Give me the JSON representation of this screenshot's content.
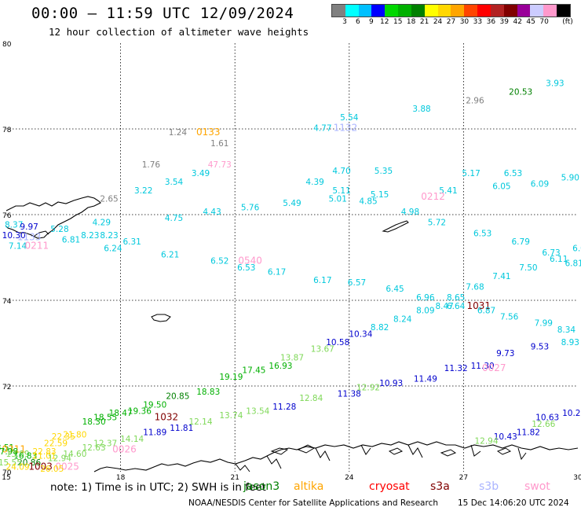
{
  "title": "00:00 – 11:59 UTC 12/09/2024",
  "subtitle": "12 hour collection of altimeter wave heights",
  "legend": {
    "unit": "(ft)",
    "colors": [
      "#808080",
      "#00ffff",
      "#00c0ff",
      "#0000ff",
      "#00d800",
      "#00b000",
      "#008000",
      "#ffff00",
      "#ffd700",
      "#ffa500",
      "#ff4500",
      "#ff0000",
      "#b22222",
      "#800000",
      "#990099",
      "#ccccff",
      "#ff99cc",
      "#000000"
    ],
    "labels": [
      "3",
      "6",
      "9",
      "12",
      "15",
      "18",
      "21",
      "24",
      "27",
      "30",
      "33",
      "36",
      "39",
      "42",
      "45",
      "70"
    ]
  },
  "axes": {
    "lat_labels": [
      "80",
      "78",
      "76",
      "74",
      "72",
      "70"
    ],
    "lon_labels": [
      "15",
      "18",
      "21",
      "24",
      "27",
      "30"
    ]
  },
  "observations": [
    {
      "t": "3.93",
      "c": "#00c8dc",
      "lon": 29.4,
      "lat": 79.0
    },
    {
      "t": "20.53",
      "c": "#008000",
      "lon": 28.5,
      "lat": 78.8
    },
    {
      "t": "2.96",
      "c": "#808080",
      "lon": 27.3,
      "lat": 78.6
    },
    {
      "t": "3.88",
      "c": "#00c8dc",
      "lon": 25.9,
      "lat": 78.4
    },
    {
      "t": "5.54",
      "c": "#00c8dc",
      "lon": 24.0,
      "lat": 78.2
    },
    {
      "t": "1132",
      "c": "#aab4ff",
      "lon": 23.9,
      "lat": 77.95
    },
    {
      "t": "4.77",
      "c": "#00c8dc",
      "lon": 23.3,
      "lat": 77.95
    },
    {
      "t": "1.24",
      "c": "#808080",
      "lon": 19.5,
      "lat": 77.85
    },
    {
      "t": "0133",
      "c": "#ffa500",
      "lon": 20.3,
      "lat": 77.85
    },
    {
      "t": "1.61",
      "c": "#808080",
      "lon": 20.6,
      "lat": 77.6
    },
    {
      "t": "1.76",
      "c": "#808080",
      "lon": 18.8,
      "lat": 77.1
    },
    {
      "t": "47.73",
      "c": "#ff99cc",
      "lon": 20.6,
      "lat": 77.1
    },
    {
      "t": "4.70",
      "c": "#00c8dc",
      "lon": 23.8,
      "lat": 76.95
    },
    {
      "t": "5.35",
      "c": "#00c8dc",
      "lon": 24.9,
      "lat": 76.95
    },
    {
      "t": "5.17",
      "c": "#00c8dc",
      "lon": 27.2,
      "lat": 76.9
    },
    {
      "t": "6.53",
      "c": "#00c8dc",
      "lon": 28.3,
      "lat": 76.9
    },
    {
      "t": "3.49",
      "c": "#00c8dc",
      "lon": 20.1,
      "lat": 76.9
    },
    {
      "t": "3.54",
      "c": "#00c8dc",
      "lon": 19.4,
      "lat": 76.7
    },
    {
      "t": "5.90",
      "c": "#00c8dc",
      "lon": 29.8,
      "lat": 76.8
    },
    {
      "t": "4.39",
      "c": "#00c8dc",
      "lon": 23.1,
      "lat": 76.7
    },
    {
      "t": "6.05",
      "c": "#00c8dc",
      "lon": 28.0,
      "lat": 76.6
    },
    {
      "t": "6.09",
      "c": "#00c8dc",
      "lon": 29.0,
      "lat": 76.65
    },
    {
      "t": "3.22",
      "c": "#00c8dc",
      "lon": 18.6,
      "lat": 76.5
    },
    {
      "t": "5.11",
      "c": "#00c8dc",
      "lon": 23.8,
      "lat": 76.5
    },
    {
      "t": "5.41",
      "c": "#00c8dc",
      "lon": 26.6,
      "lat": 76.5
    },
    {
      "t": "5.15",
      "c": "#00c8dc",
      "lon": 24.8,
      "lat": 76.4
    },
    {
      "t": "0212",
      "c": "#ff99cc",
      "lon": 26.2,
      "lat": 76.35
    },
    {
      "t": "5.01",
      "c": "#00c8dc",
      "lon": 23.7,
      "lat": 76.3
    },
    {
      "t": "4.85",
      "c": "#00c8dc",
      "lon": 24.5,
      "lat": 76.25
    },
    {
      "t": "2.65",
      "c": "#808080",
      "lon": 17.7,
      "lat": 76.3
    },
    {
      "t": "5.49",
      "c": "#00c8dc",
      "lon": 22.5,
      "lat": 76.2
    },
    {
      "t": "5.76",
      "c": "#00c8dc",
      "lon": 21.4,
      "lat": 76.1
    },
    {
      "t": "4.43",
      "c": "#00c8dc",
      "lon": 20.4,
      "lat": 76.0
    },
    {
      "t": "4.98",
      "c": "#00c8dc",
      "lon": 25.6,
      "lat": 76.0
    },
    {
      "t": "4.75",
      "c": "#00c8dc",
      "lon": 19.4,
      "lat": 75.85
    },
    {
      "t": "5.72",
      "c": "#00c8dc",
      "lon": 26.3,
      "lat": 75.75
    },
    {
      "t": "4.29",
      "c": "#00c8dc",
      "lon": 17.5,
      "lat": 75.75
    },
    {
      "t": "5.28",
      "c": "#00c8dc",
      "lon": 16.4,
      "lat": 75.6
    },
    {
      "t": "8.37",
      "c": "#00c8dc",
      "lon": 15.2,
      "lat": 75.7
    },
    {
      "t": "9.97",
      "c": "#0000cd",
      "lon": 15.6,
      "lat": 75.65
    },
    {
      "t": "10.30",
      "c": "#0000cd",
      "lon": 15.2,
      "lat": 75.45
    },
    {
      "t": "1133",
      "c": "#aab4ff",
      "lon": 15.6,
      "lat": 75.4
    },
    {
      "t": "8.23",
      "c": "#00c8dc",
      "lon": 17.2,
      "lat": 75.45
    },
    {
      "t": "6.81",
      "c": "#00c8dc",
      "lon": 16.7,
      "lat": 75.35
    },
    {
      "t": "8.23",
      "c": "#00c8dc",
      "lon": 17.7,
      "lat": 75.45
    },
    {
      "t": "6.53",
      "c": "#00c8dc",
      "lon": 27.5,
      "lat": 75.5
    },
    {
      "t": "6.31",
      "c": "#00c8dc",
      "lon": 18.3,
      "lat": 75.3
    },
    {
      "t": "6.79",
      "c": "#00c8dc",
      "lon": 28.5,
      "lat": 75.3
    },
    {
      "t": "7.14",
      "c": "#00c8dc",
      "lon": 15.3,
      "lat": 75.2
    },
    {
      "t": "0211",
      "c": "#ff99cc",
      "lon": 15.8,
      "lat": 75.2
    },
    {
      "t": "6.24",
      "c": "#00c8dc",
      "lon": 17.8,
      "lat": 75.15
    },
    {
      "t": "6.08",
      "c": "#00c8dc",
      "lon": 30.1,
      "lat": 75.15
    },
    {
      "t": "6.21",
      "c": "#00c8dc",
      "lon": 19.3,
      "lat": 75.0
    },
    {
      "t": "6.73",
      "c": "#00c8dc",
      "lon": 29.3,
      "lat": 75.05
    },
    {
      "t": "6.52",
      "c": "#00c8dc",
      "lon": 20.6,
      "lat": 74.85
    },
    {
      "t": "0540",
      "c": "#ff99cc",
      "lon": 21.4,
      "lat": 74.85
    },
    {
      "t": "6.11",
      "c": "#00c8dc",
      "lon": 29.5,
      "lat": 74.9
    },
    {
      "t": "6.81",
      "c": "#00c8dc",
      "lon": 29.9,
      "lat": 74.8
    },
    {
      "t": "6.53",
      "c": "#00c8dc",
      "lon": 21.3,
      "lat": 74.7
    },
    {
      "t": "7.50",
      "c": "#00c8dc",
      "lon": 28.7,
      "lat": 74.7
    },
    {
      "t": "6.17",
      "c": "#00c8dc",
      "lon": 22.1,
      "lat": 74.6
    },
    {
      "t": "6.17",
      "c": "#00c8dc",
      "lon": 23.3,
      "lat": 74.4
    },
    {
      "t": "7.41",
      "c": "#00c8dc",
      "lon": 28.0,
      "lat": 74.5
    },
    {
      "t": "6.57",
      "c": "#00c8dc",
      "lon": 24.2,
      "lat": 74.35
    },
    {
      "t": "7.68",
      "c": "#00c8dc",
      "lon": 27.3,
      "lat": 74.25
    },
    {
      "t": "6.45",
      "c": "#00c8dc",
      "lon": 25.2,
      "lat": 74.2
    },
    {
      "t": "6.96",
      "c": "#00c8dc",
      "lon": 26.0,
      "lat": 74.0
    },
    {
      "t": "8.65",
      "c": "#00c8dc",
      "lon": 26.8,
      "lat": 74.0
    },
    {
      "t": "8.47",
      "c": "#00c8dc",
      "lon": 26.5,
      "lat": 73.8
    },
    {
      "t": "6.64",
      "c": "#00c8dc",
      "lon": 26.8,
      "lat": 73.8
    },
    {
      "t": "1031",
      "c": "#800000",
      "lon": 27.4,
      "lat": 73.8
    },
    {
      "t": "6.87",
      "c": "#00c8dc",
      "lon": 27.6,
      "lat": 73.7
    },
    {
      "t": "8.09",
      "c": "#00c8dc",
      "lon": 26.0,
      "lat": 73.7
    },
    {
      "t": "7.56",
      "c": "#00c8dc",
      "lon": 28.2,
      "lat": 73.55
    },
    {
      "t": "8.24",
      "c": "#00c8dc",
      "lon": 25.4,
      "lat": 73.5
    },
    {
      "t": "7.99",
      "c": "#00c8dc",
      "lon": 29.1,
      "lat": 73.4
    },
    {
      "t": "8.82",
      "c": "#00c8dc",
      "lon": 24.8,
      "lat": 73.3
    },
    {
      "t": "8.34",
      "c": "#00c8dc",
      "lon": 29.7,
      "lat": 73.25
    },
    {
      "t": "10.34",
      "c": "#0000cd",
      "lon": 24.3,
      "lat": 73.15
    },
    {
      "t": "10.58",
      "c": "#0000cd",
      "lon": 23.7,
      "lat": 72.95
    },
    {
      "t": "8.93",
      "c": "#00c8dc",
      "lon": 29.8,
      "lat": 72.95
    },
    {
      "t": "9.53",
      "c": "#0000cd",
      "lon": 29.0,
      "lat": 72.85
    },
    {
      "t": "13.67",
      "c": "#7fd858",
      "lon": 23.3,
      "lat": 72.8
    },
    {
      "t": "13.87",
      "c": "#7fd858",
      "lon": 22.5,
      "lat": 72.6
    },
    {
      "t": "9.73",
      "c": "#0000cd",
      "lon": 28.1,
      "lat": 72.7
    },
    {
      "t": "11.30",
      "c": "#0000cd",
      "lon": 27.5,
      "lat": 72.4
    },
    {
      "t": "16.93",
      "c": "#00b000",
      "lon": 22.2,
      "lat": 72.4
    },
    {
      "t": "11.32",
      "c": "#0000cd",
      "lon": 26.8,
      "lat": 72.35
    },
    {
      "t": "0027",
      "c": "#ff99cc",
      "lon": 27.8,
      "lat": 72.35
    },
    {
      "t": "17.45",
      "c": "#00b000",
      "lon": 21.5,
      "lat": 72.3
    },
    {
      "t": "11.49",
      "c": "#0000cd",
      "lon": 26.0,
      "lat": 72.1
    },
    {
      "t": "19.19",
      "c": "#00b000",
      "lon": 20.9,
      "lat": 72.15
    },
    {
      "t": "10.93",
      "c": "#0000cd",
      "lon": 25.1,
      "lat": 72.0
    },
    {
      "t": "12.92",
      "c": "#7fd858",
      "lon": 24.5,
      "lat": 71.9
    },
    {
      "t": "18.83",
      "c": "#00b000",
      "lon": 20.3,
      "lat": 71.8
    },
    {
      "t": "11.38",
      "c": "#0000cd",
      "lon": 24.0,
      "lat": 71.75
    },
    {
      "t": "20.85",
      "c": "#008000",
      "lon": 19.5,
      "lat": 71.7
    },
    {
      "t": "12.84",
      "c": "#7fd858",
      "lon": 23.0,
      "lat": 71.65
    },
    {
      "t": "19.50",
      "c": "#00b000",
      "lon": 18.9,
      "lat": 71.5
    },
    {
      "t": "11.28",
      "c": "#0000cd",
      "lon": 22.3,
      "lat": 71.45
    },
    {
      "t": "19.36",
      "c": "#00b000",
      "lon": 18.5,
      "lat": 71.35
    },
    {
      "t": "13.54",
      "c": "#7fd858",
      "lon": 21.6,
      "lat": 71.35
    },
    {
      "t": "18.47",
      "c": "#00b000",
      "lon": 18.0,
      "lat": 71.3
    },
    {
      "t": "1032",
      "c": "#800000",
      "lon": 19.2,
      "lat": 71.2
    },
    {
      "t": "18.55",
      "c": "#00b000",
      "lon": 17.6,
      "lat": 71.2
    },
    {
      "t": "10.26",
      "c": "#0000cd",
      "lon": 29.9,
      "lat": 71.3
    },
    {
      "t": "13.74",
      "c": "#7fd858",
      "lon": 20.9,
      "lat": 71.25
    },
    {
      "t": "10.63",
      "c": "#0000cd",
      "lon": 29.2,
      "lat": 71.2
    },
    {
      "t": "18.30",
      "c": "#00b000",
      "lon": 17.3,
      "lat": 71.1
    },
    {
      "t": "12.14",
      "c": "#7fd858",
      "lon": 20.1,
      "lat": 71.1
    },
    {
      "t": "12.66",
      "c": "#7fd858",
      "lon": 29.1,
      "lat": 71.05
    },
    {
      "t": "11.81",
      "c": "#0000cd",
      "lon": 19.6,
      "lat": 70.95
    },
    {
      "t": "11.82",
      "c": "#0000cd",
      "lon": 28.7,
      "lat": 70.85
    },
    {
      "t": "21.80",
      "c": "#ffd700",
      "lon": 16.8,
      "lat": 70.8
    },
    {
      "t": "11.89",
      "c": "#0000cd",
      "lon": 18.9,
      "lat": 70.85
    },
    {
      "t": "10.43",
      "c": "#0000cd",
      "lon": 28.1,
      "lat": 70.75
    },
    {
      "t": "14.14",
      "c": "#7fd858",
      "lon": 18.3,
      "lat": 70.7
    },
    {
      "t": "22.35",
      "c": "#ffd700",
      "lon": 16.5,
      "lat": 70.75
    },
    {
      "t": "22.59",
      "c": "#ffd700",
      "lon": 16.3,
      "lat": 70.6
    },
    {
      "t": "12.37",
      "c": "#7fd858",
      "lon": 17.6,
      "lat": 70.6
    },
    {
      "t": "12.94",
      "c": "#7fd858",
      "lon": 27.6,
      "lat": 70.65
    },
    {
      "t": "18.51",
      "c": "#00b000",
      "lon": 14.9,
      "lat": 70.5
    },
    {
      "t": "0311",
      "c": "#ffa500",
      "lon": 15.2,
      "lat": 70.45
    },
    {
      "t": "17.98",
      "c": "#00b000",
      "lon": 15.0,
      "lat": 70.4
    },
    {
      "t": "22.83",
      "c": "#ffd700",
      "lon": 16.0,
      "lat": 70.4
    },
    {
      "t": "12.63",
      "c": "#7fd858",
      "lon": 17.3,
      "lat": 70.5
    },
    {
      "t": "0026",
      "c": "#ff99cc",
      "lon": 18.1,
      "lat": 70.45
    },
    {
      "t": "13.89",
      "c": "#7fd858",
      "lon": 15.3,
      "lat": 70.35
    },
    {
      "t": "14.60",
      "c": "#7fd858",
      "lon": 16.8,
      "lat": 70.35
    },
    {
      "t": "16.83",
      "c": "#00b000",
      "lon": 15.5,
      "lat": 70.3
    },
    {
      "t": "21.01",
      "c": "#ffd700",
      "lon": 16.0,
      "lat": 70.3
    },
    {
      "t": "12.94",
      "c": "#7fd858",
      "lon": 16.4,
      "lat": 70.25
    },
    {
      "t": "20.86",
      "c": "#008000",
      "lon": 15.6,
      "lat": 70.15
    },
    {
      "t": "15.55",
      "c": "#7fd858",
      "lon": 15.1,
      "lat": 70.15
    },
    {
      "t": "24.09",
      "c": "#ffd700",
      "lon": 15.3,
      "lat": 70.05
    },
    {
      "t": "1003",
      "c": "#800000",
      "lon": 15.9,
      "lat": 70.05
    },
    {
      "t": "0025",
      "c": "#ff99cc",
      "lon": 16.6,
      "lat": 70.05
    },
    {
      "t": "26.05",
      "c": "#ffd700",
      "lon": 16.2,
      "lat": 70.0
    }
  ],
  "footer": {
    "note": "note: 1) Time is in UTC; 2) SWH is in feet",
    "satellites": [
      {
        "name": "jason3",
        "color": "#008000"
      },
      {
        "name": "altika",
        "color": "#ffa500"
      },
      {
        "name": "cryosat",
        "color": "#ff0000"
      },
      {
        "name": "s3a",
        "color": "#800000"
      },
      {
        "name": "s3b",
        "color": "#aab4ff"
      },
      {
        "name": "swot",
        "color": "#ff99cc"
      }
    ],
    "credit": "NOAA/NESDIS Center for Satellite Applications and Research",
    "generated": "15 Dec 14:06:20 UTC 2024"
  }
}
